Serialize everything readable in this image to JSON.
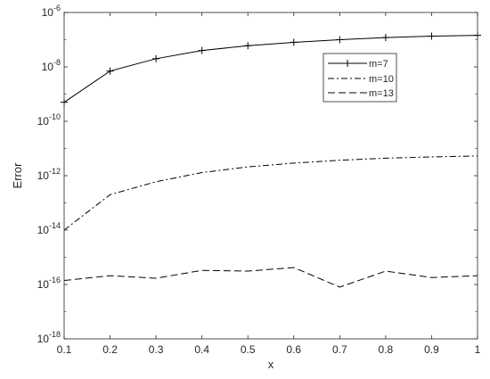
{
  "chart_data": {
    "type": "line",
    "xlabel": "x",
    "ylabel": "Error",
    "xlim": [
      0.1,
      1
    ],
    "ylim": [
      1e-18,
      1e-06
    ],
    "yscale": "log",
    "grid": false,
    "legend_position": "top-right",
    "x": [
      0.1,
      0.2,
      0.3,
      0.4,
      0.5,
      0.6,
      0.7,
      0.8,
      0.9,
      1.0
    ],
    "x_ticks": [
      "0.1",
      "0.2",
      "0.3",
      "0.4",
      "0.5",
      "0.6",
      "0.7",
      "0.8",
      "0.9",
      "1"
    ],
    "y_ticks": [
      {
        "value": 1e-18,
        "base": "10",
        "exp": "-18"
      },
      {
        "value": 1e-16,
        "base": "10",
        "exp": "-16"
      },
      {
        "value": 1e-14,
        "base": "10",
        "exp": "-14"
      },
      {
        "value": 1e-12,
        "base": "10",
        "exp": "-12"
      },
      {
        "value": 1e-10,
        "base": "10",
        "exp": "-10"
      },
      {
        "value": 1e-08,
        "base": "10",
        "exp": "-8"
      },
      {
        "value": 1e-06,
        "base": "10",
        "exp": "-6"
      }
    ],
    "series": [
      {
        "name": "m=7",
        "line_style": "solid",
        "marker": "plus",
        "color": "#000000",
        "values": [
          5e-10,
          7e-09,
          2e-08,
          4e-08,
          6e-08,
          8e-08,
          1e-07,
          1.2e-07,
          1.35e-07,
          1.45e-07
        ]
      },
      {
        "name": "m=10",
        "line_style": "dashdot",
        "marker": "none",
        "color": "#000000",
        "values": [
          1e-14,
          2e-13,
          6e-13,
          1.3e-12,
          2.1e-12,
          2.9e-12,
          3.7e-12,
          4.4e-12,
          4.9e-12,
          5.3e-12
        ]
      },
      {
        "name": "m=13",
        "line_style": "dashed",
        "marker": "none",
        "color": "#000000",
        "values": [
          1.4e-16,
          2.1e-16,
          1.7e-16,
          3.3e-16,
          3.1e-16,
          4.2e-16,
          8e-17,
          3.1e-16,
          1.8e-16,
          2.1e-16
        ]
      }
    ]
  }
}
